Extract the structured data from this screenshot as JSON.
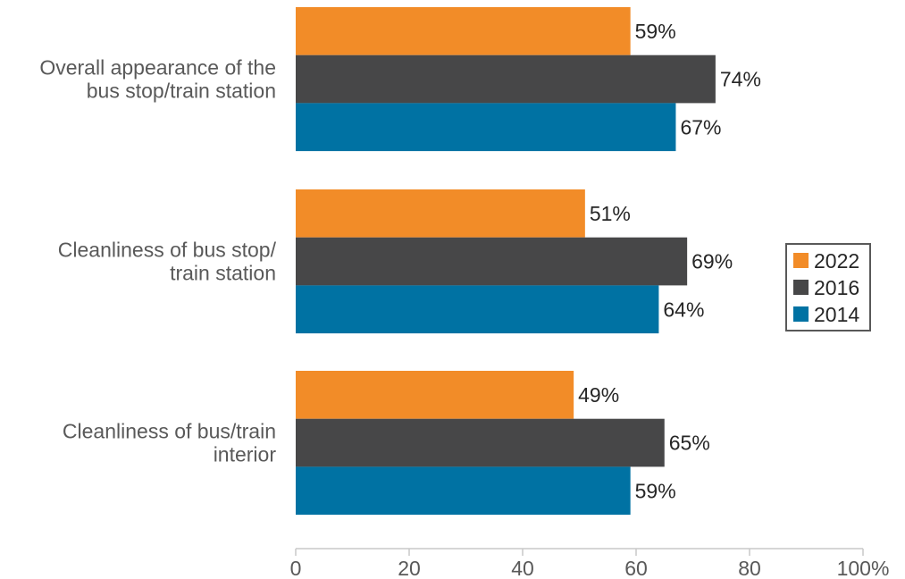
{
  "chart_data": {
    "type": "bar",
    "orientation": "horizontal",
    "categories": [
      [
        "Overall appearance of the",
        "bus stop/train station"
      ],
      [
        "Cleanliness of bus stop/",
        "train station"
      ],
      [
        "Cleanliness of bus/train",
        "interior"
      ]
    ],
    "series": [
      {
        "name": "2022",
        "values": [
          59,
          51,
          49
        ],
        "labels": [
          "59%",
          "51%",
          "49%"
        ]
      },
      {
        "name": "2016",
        "values": [
          74,
          69,
          65
        ],
        "labels": [
          "74%",
          "69%",
          "65%"
        ]
      },
      {
        "name": "2014",
        "values": [
          67,
          64,
          59
        ],
        "labels": [
          "67%",
          "64%",
          "59%"
        ]
      }
    ],
    "colors": {
      "2022": "#f28c28",
      "2016": "#474748",
      "2014": "#0072a3"
    },
    "xlim": [
      0,
      100
    ],
    "x_ticks": [
      0,
      20,
      40,
      60,
      80,
      100
    ],
    "x_tick_labels": [
      "0",
      "20",
      "40",
      "60",
      "80",
      "100%"
    ],
    "legend_entries": [
      "2022",
      "2016",
      "2014"
    ],
    "legend_position": "right",
    "grid": false,
    "title": "",
    "xlabel": "",
    "ylabel": ""
  }
}
